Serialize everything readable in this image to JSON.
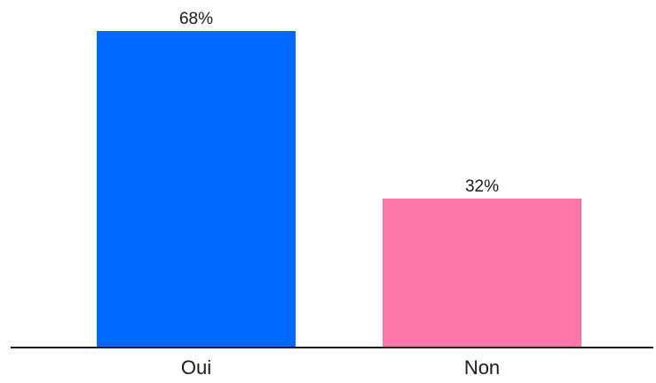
{
  "chart_data": {
    "type": "bar",
    "categories": [
      "Oui",
      "Non"
    ],
    "values": [
      68,
      32
    ],
    "value_labels": [
      "68%",
      "32%"
    ],
    "colors": [
      "#0068ff",
      "#ff77a9"
    ],
    "axis_color": "#1a1a1a",
    "ylim": [
      0,
      68
    ],
    "grid": false,
    "legend": "none"
  }
}
